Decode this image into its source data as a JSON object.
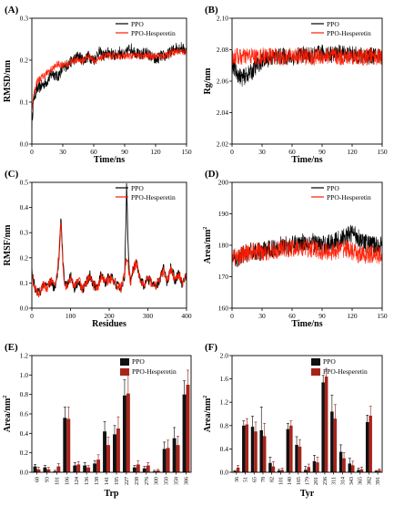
{
  "figure": {
    "colors": {
      "ppo": "#000000",
      "hes": "#ff1a00",
      "bar_ppo": "#111111",
      "bar_hes": "#a8241a",
      "axis": "#000000"
    }
  },
  "chart_data": [
    {
      "id": "A",
      "type": "line",
      "panel_label": "(A)",
      "xlabel": "Time/ns",
      "ylabel": "RMSD/nm",
      "xlim": [
        0,
        150
      ],
      "ylim": [
        0.0,
        0.3
      ],
      "xticks": [
        0,
        30,
        60,
        90,
        120,
        150
      ],
      "yticks": [
        0.0,
        0.1,
        0.2,
        0.3
      ],
      "ytick_labels": [
        "0.0",
        "0.1",
        "0.2",
        "0.3"
      ],
      "legend": [
        "PPO",
        "PPO-Hesperetin"
      ],
      "legend_position": "top-right",
      "grid": false,
      "series": [
        {
          "name": "PPO",
          "x": [
            0,
            2,
            5,
            10,
            15,
            20,
            25,
            30,
            35,
            40,
            45,
            50,
            55,
            60,
            65,
            70,
            75,
            80,
            85,
            90,
            95,
            100,
            105,
            110,
            115,
            120,
            125,
            130,
            135,
            140,
            145,
            150
          ],
          "y": [
            0.05,
            0.11,
            0.13,
            0.14,
            0.15,
            0.17,
            0.16,
            0.18,
            0.19,
            0.2,
            0.21,
            0.2,
            0.21,
            0.2,
            0.22,
            0.21,
            0.22,
            0.21,
            0.22,
            0.21,
            0.23,
            0.22,
            0.21,
            0.22,
            0.21,
            0.2,
            0.21,
            0.21,
            0.22,
            0.23,
            0.23,
            0.22
          ],
          "noise": 0.014
        },
        {
          "name": "PPO-Hesperetin",
          "x": [
            0,
            2,
            5,
            10,
            15,
            20,
            25,
            30,
            35,
            40,
            45,
            50,
            55,
            60,
            65,
            70,
            75,
            80,
            85,
            90,
            95,
            100,
            105,
            110,
            115,
            120,
            125,
            130,
            135,
            140,
            145,
            150
          ],
          "y": [
            0.08,
            0.12,
            0.15,
            0.16,
            0.17,
            0.18,
            0.19,
            0.19,
            0.19,
            0.2,
            0.2,
            0.2,
            0.21,
            0.2,
            0.2,
            0.21,
            0.21,
            0.21,
            0.21,
            0.21,
            0.21,
            0.21,
            0.21,
            0.21,
            0.21,
            0.21,
            0.21,
            0.21,
            0.22,
            0.22,
            0.22,
            0.22
          ],
          "noise": 0.009
        }
      ]
    },
    {
      "id": "B",
      "type": "line",
      "panel_label": "(B)",
      "xlabel": "Time/ns",
      "ylabel": "Rg/nm",
      "xlim": [
        0,
        150
      ],
      "ylim": [
        2.02,
        2.1
      ],
      "xticks": [
        0,
        30,
        60,
        90,
        120,
        150
      ],
      "yticks": [
        2.02,
        2.04,
        2.06,
        2.08,
        2.1
      ],
      "ytick_labels": [
        "2.02",
        "2.04",
        "2.06",
        "2.08",
        "2.10"
      ],
      "legend": [
        "PPO",
        "PPO-Hesperetin"
      ],
      "legend_position": "top-right",
      "grid": false,
      "series": [
        {
          "name": "PPO",
          "x": [
            0,
            5,
            10,
            15,
            20,
            25,
            30,
            40,
            50,
            60,
            70,
            80,
            90,
            100,
            110,
            120,
            130,
            140,
            150
          ],
          "y": [
            2.07,
            2.065,
            2.062,
            2.064,
            2.066,
            2.07,
            2.073,
            2.075,
            2.076,
            2.075,
            2.077,
            2.076,
            2.078,
            2.077,
            2.078,
            2.077,
            2.076,
            2.076,
            2.076
          ],
          "noise": 0.0055
        },
        {
          "name": "PPO-Hesperetin",
          "x": [
            0,
            5,
            10,
            15,
            20,
            25,
            30,
            40,
            50,
            60,
            70,
            80,
            90,
            100,
            110,
            120,
            130,
            140,
            150
          ],
          "y": [
            2.075,
            2.076,
            2.075,
            2.076,
            2.076,
            2.075,
            2.076,
            2.076,
            2.075,
            2.076,
            2.076,
            2.075,
            2.076,
            2.076,
            2.075,
            2.076,
            2.075,
            2.076,
            2.075
          ],
          "noise": 0.0055
        }
      ]
    },
    {
      "id": "C",
      "type": "line",
      "panel_label": "(C)",
      "xlabel": "Residues",
      "ylabel": "RMSF/nm",
      "xlim": [
        0,
        400
      ],
      "ylim": [
        0.0,
        0.5
      ],
      "xticks": [
        0,
        100,
        200,
        300,
        400
      ],
      "yticks": [
        0.0,
        0.1,
        0.2,
        0.3,
        0.4,
        0.5
      ],
      "ytick_labels": [
        "0.0",
        "0.1",
        "0.2",
        "0.3",
        "0.4",
        "0.5"
      ],
      "legend": [
        "PPO",
        "PPO-Hesperetin"
      ],
      "legend_position": "top-right",
      "grid": false,
      "series": [
        {
          "name": "PPO",
          "x": [
            0,
            5,
            10,
            20,
            30,
            40,
            50,
            60,
            65,
            70,
            75,
            80,
            85,
            90,
            100,
            110,
            120,
            130,
            140,
            150,
            160,
            170,
            180,
            190,
            200,
            210,
            220,
            230,
            240,
            245,
            250,
            255,
            260,
            270,
            280,
            290,
            300,
            310,
            320,
            330,
            340,
            350,
            360,
            370,
            380,
            390,
            395
          ],
          "y": [
            0.14,
            0.1,
            0.07,
            0.06,
            0.09,
            0.08,
            0.11,
            0.07,
            0.12,
            0.2,
            0.37,
            0.2,
            0.1,
            0.09,
            0.13,
            0.08,
            0.11,
            0.07,
            0.1,
            0.13,
            0.09,
            0.08,
            0.14,
            0.1,
            0.13,
            0.11,
            0.09,
            0.08,
            0.12,
            0.48,
            0.2,
            0.1,
            0.14,
            0.18,
            0.11,
            0.09,
            0.12,
            0.1,
            0.08,
            0.11,
            0.16,
            0.1,
            0.17,
            0.11,
            0.14,
            0.09,
            0.12
          ],
          "noise": 0.02
        },
        {
          "name": "PPO-Hesperetin",
          "x": [
            0,
            5,
            10,
            20,
            30,
            40,
            50,
            60,
            65,
            70,
            75,
            80,
            85,
            90,
            100,
            110,
            120,
            130,
            140,
            150,
            160,
            170,
            180,
            190,
            200,
            210,
            220,
            230,
            240,
            245,
            250,
            255,
            260,
            270,
            280,
            290,
            300,
            310,
            320,
            330,
            340,
            350,
            360,
            370,
            380,
            390,
            395
          ],
          "y": [
            0.13,
            0.1,
            0.07,
            0.06,
            0.09,
            0.08,
            0.11,
            0.08,
            0.13,
            0.22,
            0.35,
            0.19,
            0.09,
            0.09,
            0.12,
            0.08,
            0.12,
            0.07,
            0.1,
            0.13,
            0.09,
            0.08,
            0.13,
            0.1,
            0.12,
            0.11,
            0.09,
            0.08,
            0.13,
            0.2,
            0.16,
            0.1,
            0.15,
            0.18,
            0.11,
            0.09,
            0.12,
            0.1,
            0.09,
            0.11,
            0.15,
            0.1,
            0.16,
            0.11,
            0.14,
            0.09,
            0.12
          ],
          "noise": 0.02
        }
      ]
    },
    {
      "id": "D",
      "type": "line",
      "panel_label": "(D)",
      "xlabel": "Time/ns",
      "ylabel": "Area/nm",
      "ylabel_sup": "2",
      "xlim": [
        0,
        150
      ],
      "ylim": [
        160,
        200
      ],
      "xticks": [
        0,
        30,
        60,
        90,
        120,
        150
      ],
      "yticks": [
        160,
        170,
        180,
        190,
        200
      ],
      "ytick_labels": [
        "160",
        "170",
        "180",
        "190",
        "200"
      ],
      "legend": [
        "PPO",
        "PPO-Hesperetin"
      ],
      "legend_position": "top-right",
      "grid": false,
      "series": [
        {
          "name": "PPO",
          "x": [
            0,
            5,
            10,
            20,
            30,
            40,
            50,
            60,
            70,
            80,
            90,
            100,
            110,
            115,
            120,
            125,
            130,
            140,
            150
          ],
          "y": [
            176,
            175,
            177,
            178,
            178,
            179,
            180,
            180,
            181,
            181,
            180,
            181,
            182,
            183,
            184,
            183,
            181,
            180,
            180
          ],
          "noise": 3.0
        },
        {
          "name": "PPO-Hesperetin",
          "x": [
            0,
            5,
            10,
            20,
            30,
            40,
            50,
            60,
            70,
            80,
            90,
            100,
            110,
            115,
            120,
            125,
            130,
            140,
            150
          ],
          "y": [
            177,
            176,
            177,
            178,
            178,
            178,
            179,
            179,
            179,
            179,
            178,
            178,
            179,
            179,
            178,
            177,
            177,
            177,
            177
          ],
          "noise": 3.0
        }
      ]
    },
    {
      "id": "E",
      "type": "bar",
      "panel_label": "(E)",
      "xlabel": "Trp",
      "ylabel": "Area/nm",
      "ylabel_sup": "2",
      "ylim": [
        0.0,
        1.2
      ],
      "yticks": [
        0.0,
        0.2,
        0.4,
        0.6,
        0.8,
        1.0,
        1.2
      ],
      "ytick_labels": [
        "0.0",
        "0.2",
        "0.4",
        "0.6",
        "0.8",
        "1.0",
        "1.2"
      ],
      "legend": [
        "PPO",
        "PPO-Hesperetin"
      ],
      "legend_position": "top-right",
      "grid": false,
      "categories": [
        "68",
        "93",
        "101",
        "106",
        "124",
        "136",
        "138",
        "141",
        "195",
        "227",
        "238",
        "276",
        "300",
        "350",
        "358",
        "386"
      ],
      "series": [
        {
          "name": "PPO",
          "values": [
            0.06,
            0.05,
            0.01,
            0.56,
            0.07,
            0.07,
            0.09,
            0.42,
            0.39,
            0.79,
            0.05,
            0.04,
            0.01,
            0.24,
            0.35,
            0.8
          ],
          "errors": [
            0.02,
            0.02,
            0.01,
            0.11,
            0.03,
            0.03,
            0.03,
            0.1,
            0.09,
            0.16,
            0.02,
            0.02,
            0.01,
            0.07,
            0.11,
            0.14
          ]
        },
        {
          "name": "PPO-Hesperetin",
          "values": [
            0.03,
            0.03,
            0.06,
            0.55,
            0.08,
            0.05,
            0.13,
            0.28,
            0.45,
            0.81,
            0.08,
            0.07,
            0.02,
            0.25,
            0.28,
            0.9
          ],
          "errors": [
            0.02,
            0.02,
            0.03,
            0.12,
            0.03,
            0.02,
            0.05,
            0.08,
            0.12,
            0.2,
            0.04,
            0.03,
            0.01,
            0.08,
            0.09,
            0.15
          ]
        }
      ]
    },
    {
      "id": "F",
      "type": "bar",
      "panel_label": "(F)",
      "xlabel": "Tyr",
      "ylabel": "Area/nm",
      "ylabel_sup": "2",
      "ylim": [
        0.0,
        2.0
      ],
      "yticks": [
        0.0,
        0.4,
        0.8,
        1.2,
        1.6,
        2.0
      ],
      "ytick_labels": [
        "0.0",
        "0.4",
        "0.8",
        "1.2",
        "1.6",
        "2.0"
      ],
      "legend": [
        "PPO",
        "PPO-Hesperetin"
      ],
      "legend_position": "top-right",
      "grid": false,
      "categories": [
        "36",
        "51",
        "65",
        "78",
        "82",
        "101",
        "140",
        "165",
        "179",
        "201",
        "236",
        "311",
        "314",
        "343",
        "365",
        "382",
        "391"
      ],
      "series": [
        {
          "name": "PPO",
          "values": [
            0.02,
            0.8,
            0.78,
            0.72,
            0.16,
            0.03,
            0.74,
            0.47,
            0.04,
            0.19,
            1.54,
            1.04,
            0.35,
            0.15,
            0.04,
            0.86,
            0.02
          ],
          "errors": [
            0.01,
            0.08,
            0.18,
            0.4,
            0.1,
            0.02,
            0.1,
            0.14,
            0.06,
            0.1,
            0.12,
            0.28,
            0.12,
            0.09,
            0.03,
            0.12,
            0.01
          ]
        },
        {
          "name": "PPO-Hesperetin",
          "values": [
            0.08,
            0.82,
            0.7,
            0.62,
            0.1,
            0.04,
            0.8,
            0.44,
            0.09,
            0.17,
            1.64,
            0.92,
            0.24,
            0.12,
            0.05,
            0.97,
            0.04
          ],
          "errors": [
            0.04,
            0.1,
            0.16,
            0.22,
            0.08,
            0.03,
            0.08,
            0.12,
            0.05,
            0.09,
            0.14,
            0.24,
            0.1,
            0.07,
            0.04,
            0.16,
            0.02
          ]
        }
      ]
    }
  ]
}
